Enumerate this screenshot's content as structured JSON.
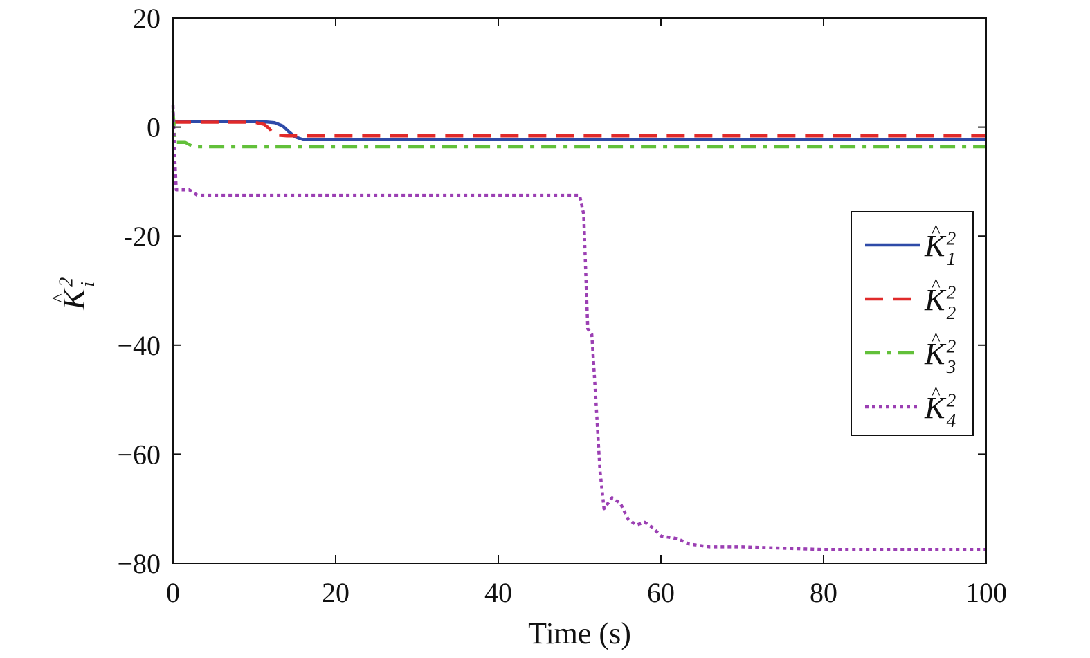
{
  "chart_data": {
    "type": "line",
    "title": "",
    "xlabel": "Time (s)",
    "ylabel": {
      "base": "K",
      "hat": "^",
      "sub": "i",
      "sup": "2"
    },
    "xlim": [
      0,
      100
    ],
    "ylim": [
      -80,
      20
    ],
    "xticks": [
      0,
      20,
      40,
      60,
      80,
      100
    ],
    "yticks": [
      20,
      0,
      -20,
      -40,
      -60,
      -80
    ],
    "x_tick_labels": [
      "0",
      "20",
      "40",
      "60",
      "80",
      "100"
    ],
    "y_tick_labels": [
      "20",
      "0",
      "-20",
      "−40",
      "−60",
      "−80"
    ],
    "grid": false,
    "legend_position": "right",
    "series": [
      {
        "name": "K_1^2",
        "legend": {
          "base": "K",
          "hat": "^",
          "sub": "1",
          "sup": "2"
        },
        "color": "#2e4aa8",
        "style": "solid",
        "x": [
          0,
          0.3,
          2,
          11,
          12.5,
          13.5,
          14.2,
          15,
          16,
          100
        ],
        "y": [
          0.5,
          1.0,
          1.0,
          1.0,
          0.8,
          0.2,
          -0.8,
          -1.8,
          -2.3,
          -2.3
        ]
      },
      {
        "name": "K_2^2",
        "legend": {
          "base": "K",
          "hat": "^",
          "sub": "2",
          "sup": "2"
        },
        "color": "#e02a2a",
        "style": "dashed",
        "x": [
          0,
          0.3,
          10,
          11.2,
          11.8,
          12.3,
          13,
          14,
          15,
          100
        ],
        "y": [
          0.8,
          0.9,
          0.9,
          0.5,
          -0.2,
          -1.2,
          -1.5,
          -1.6,
          -1.6,
          -1.6
        ]
      },
      {
        "name": "K_3^2",
        "legend": {
          "base": "K",
          "hat": "^",
          "sub": "3",
          "sup": "2"
        },
        "color": "#62c03a",
        "style": "dashdot",
        "x": [
          0,
          0.3,
          1.5,
          2.5,
          3.5,
          100
        ],
        "y": [
          3.0,
          -2.8,
          -2.8,
          -3.6,
          -3.6,
          -3.6
        ]
      },
      {
        "name": "K_4^2",
        "legend": {
          "base": "K",
          "hat": "^",
          "sub": "4",
          "sup": "2"
        },
        "color": "#9b3fb3",
        "style": "dotted",
        "x": [
          0,
          0.2,
          0.4,
          0.6,
          2.0,
          3.0,
          3.5,
          50,
          50.5,
          51,
          51.5,
          52,
          52.5,
          53,
          53.5,
          54,
          55,
          56,
          57,
          58,
          59,
          60,
          62,
          63.5,
          66,
          70,
          80,
          100
        ],
        "y": [
          4.0,
          -5.0,
          -11.5,
          -11.5,
          -11.5,
          -12.5,
          -12.5,
          -12.5,
          -16,
          -37,
          -38,
          -50,
          -63,
          -70,
          -69,
          -68,
          -69,
          -72,
          -73,
          -72.5,
          -73.5,
          -75,
          -75.5,
          -76.5,
          -77,
          -77,
          -77.5,
          -77.5
        ]
      }
    ]
  }
}
